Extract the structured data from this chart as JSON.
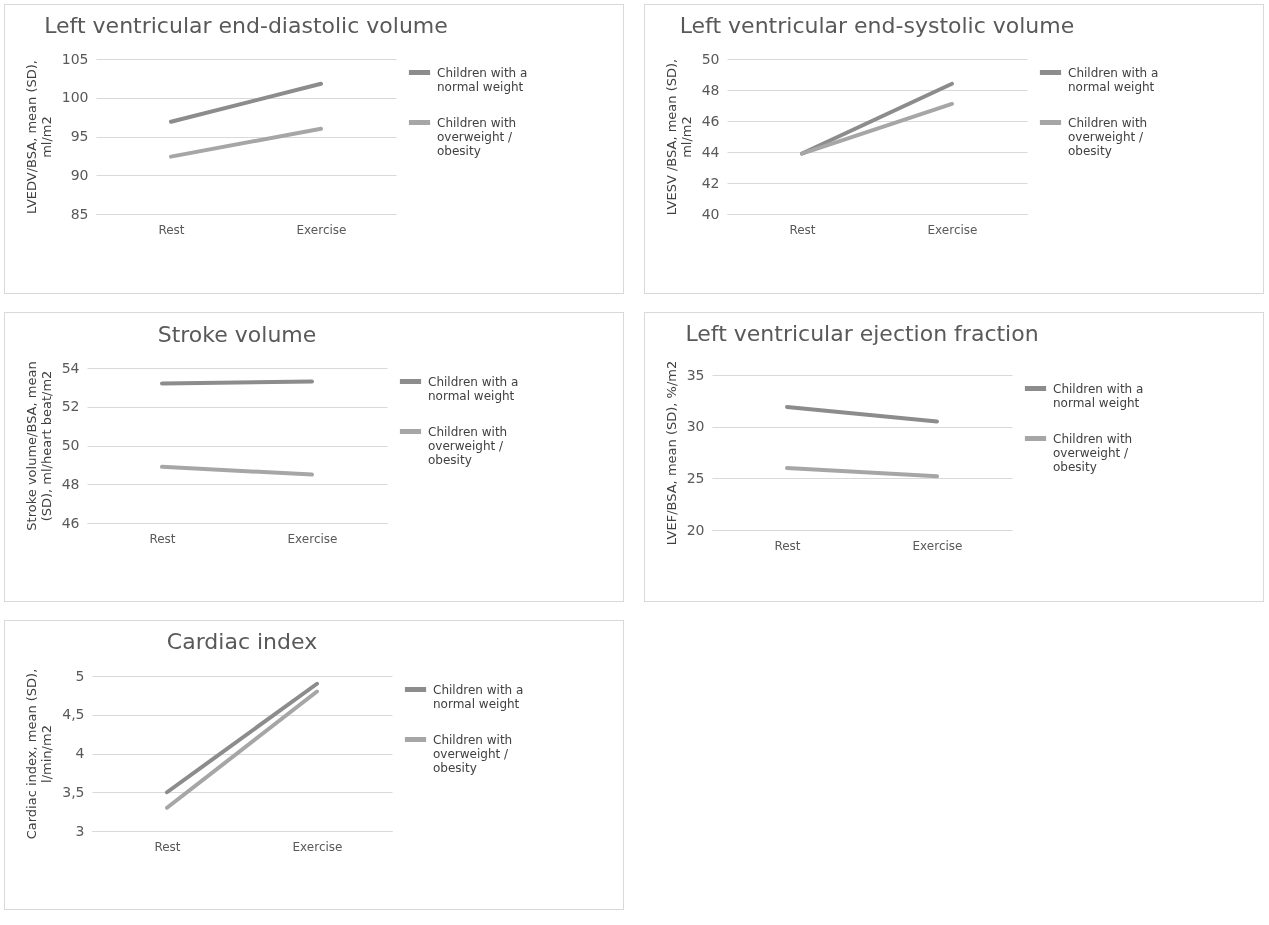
{
  "chart_data": [
    {
      "type": "line",
      "title": "Left ventricular end-diastolic volume",
      "ylabel": "LVEDV/BSA, mean (SD), ml/m2",
      "categories": [
        "Rest",
        "Exercise"
      ],
      "ylim": [
        85,
        105
      ],
      "yticks": [
        85,
        90,
        95,
        100,
        105
      ],
      "grid": "y",
      "legend": "right",
      "series": [
        {
          "name": "Children with a normal weight",
          "color": "#8c8c8c",
          "values": [
            96.9,
            101.8
          ]
        },
        {
          "name": "Children with overweight / obesity",
          "color": "#a6a6a6",
          "values": [
            92.4,
            96.0
          ]
        }
      ]
    },
    {
      "type": "line",
      "title": "Left ventricular end-systolic volume",
      "ylabel": "LVESV /BSA, mean (SD), ml/m2",
      "categories": [
        "Rest",
        "Exercise"
      ],
      "ylim": [
        40,
        50
      ],
      "yticks": [
        40,
        42,
        44,
        46,
        48,
        50
      ],
      "grid": "y",
      "legend": "right",
      "series": [
        {
          "name": "Children with a normal weight",
          "color": "#8c8c8c",
          "values": [
            43.9,
            48.4
          ]
        },
        {
          "name": "Children with overweight / obesity",
          "color": "#a6a6a6",
          "values": [
            43.9,
            47.1
          ]
        }
      ]
    },
    {
      "type": "line",
      "title": "Stroke volume",
      "ylabel": "Stroke volume/BSA, mean (SD), ml/heart beat/m2",
      "categories": [
        "Rest",
        "Exercise"
      ],
      "ylim": [
        46,
        54
      ],
      "yticks": [
        46,
        48,
        50,
        52,
        54
      ],
      "grid": "y",
      "legend": "right",
      "series": [
        {
          "name": "Children with a normal weight",
          "color": "#8c8c8c",
          "values": [
            53.2,
            53.3
          ]
        },
        {
          "name": "Children with overweight / obesity",
          "color": "#a6a6a6",
          "values": [
            48.9,
            48.5
          ]
        }
      ]
    },
    {
      "type": "line",
      "title": "Left ventricular ejection fraction",
      "ylabel": "LVEF/BSA, mean (SD), %/m2",
      "categories": [
        "Rest",
        "Exercise"
      ],
      "ylim": [
        20,
        35
      ],
      "yticks": [
        20,
        25,
        30,
        35
      ],
      "grid": "y",
      "legend": "right",
      "series": [
        {
          "name": "Children with a normal weight",
          "color": "#8c8c8c",
          "values": [
            31.9,
            30.5
          ]
        },
        {
          "name": "Children with overweight / obesity",
          "color": "#a6a6a6",
          "values": [
            26.0,
            25.2
          ]
        }
      ]
    },
    {
      "type": "line",
      "title": "Cardiac index",
      "ylabel": "Cardiac index, mean (SD), l/min/m2",
      "categories": [
        "Rest",
        "Exercise"
      ],
      "ylim": [
        3,
        5
      ],
      "yticks": [
        3,
        {
          "value": 3.5,
          "label": "3,5"
        },
        4,
        {
          "value": 4.5,
          "label": "4,5"
        },
        5
      ],
      "grid": "y",
      "legend": "right",
      "series": [
        {
          "name": "Children with a normal weight",
          "color": "#8c8c8c",
          "values": [
            3.5,
            4.9
          ]
        },
        {
          "name": "Children with overweight / obesity",
          "color": "#a6a6a6",
          "values": [
            3.3,
            4.8
          ]
        }
      ]
    }
  ]
}
